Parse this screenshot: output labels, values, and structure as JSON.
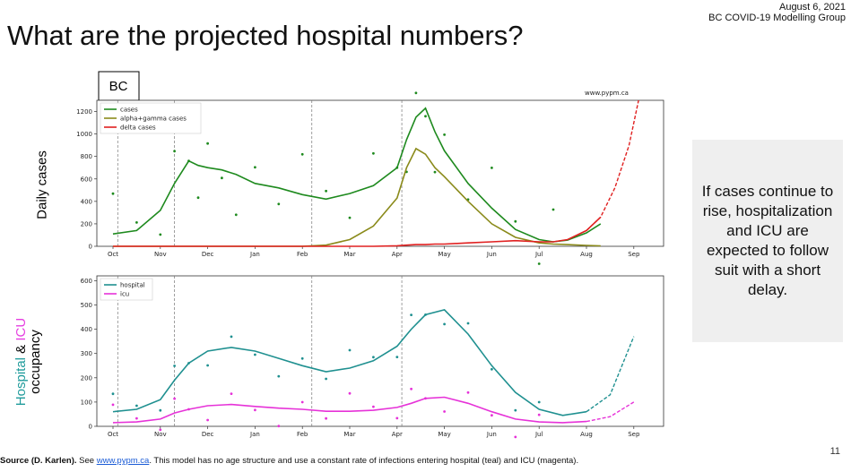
{
  "header": {
    "title": "What are the projected hospital numbers?",
    "date": "August 6, 2021",
    "group": "BC COVID-19 Modelling Group"
  },
  "region_label": "BC",
  "watermark": "www.pypm.ca",
  "callout": "If cases continue to rise, hospitalization and ICU are expected to follow suit with a short delay.",
  "ylabel_top": "Daily cases",
  "ylabel_bottom": {
    "part1": "Hospital",
    "amp": " & ",
    "part2": "ICU",
    "line2": "occupancy"
  },
  "footer": {
    "bold": "Source (D. Karlen).",
    "see": " See ",
    "link": "www.pypm.ca",
    "rest": ". This model has no age structure and use a constant rate of infections entering hospital (teal) and ICU (magenta)."
  },
  "page_number": "11",
  "colors": {
    "cases": "#1e8a1e",
    "alpha": "#8a8a1a",
    "delta": "#e02020",
    "hospital": "#1f9090",
    "icu": "#e632d8"
  },
  "chart_data": [
    {
      "type": "line",
      "xlabels": [
        "Oct",
        "Nov",
        "Dec",
        "Jan",
        "Feb",
        "Mar",
        "Apr",
        "May",
        "Jun",
        "Jul",
        "Aug",
        "Sep"
      ],
      "ylim": [
        0,
        1300
      ],
      "yticks": [
        0,
        200,
        400,
        600,
        800,
        1000,
        1200
      ],
      "legend": [
        "cases",
        "alpha+gamma cases",
        "delta cases"
      ],
      "legend_position": "top-left",
      "x_months": [
        0,
        0.5,
        1,
        1.3,
        1.6,
        1.8,
        2,
        2.3,
        2.6,
        3,
        3.5,
        4,
        4.5,
        5,
        5.5,
        6,
        6.2,
        6.4,
        6.6,
        6.8,
        7,
        7.5,
        8,
        8.5,
        9,
        9.3,
        9.6,
        10,
        10.3
      ],
      "series": [
        {
          "name": "cases",
          "values": [
            110,
            140,
            320,
            560,
            760,
            720,
            700,
            680,
            640,
            560,
            520,
            460,
            420,
            470,
            540,
            700,
            950,
            1150,
            1230,
            1020,
            850,
            560,
            340,
            150,
            60,
            40,
            55,
            120,
            200
          ]
        },
        {
          "name": "alpha+gamma cases",
          "values": [
            0,
            0,
            0,
            0,
            0,
            0,
            0,
            0,
            0,
            0,
            0,
            0,
            10,
            60,
            180,
            430,
            700,
            870,
            820,
            700,
            620,
            400,
            200,
            80,
            30,
            20,
            15,
            8,
            4
          ]
        },
        {
          "name": "delta cases",
          "values": [
            0,
            0,
            0,
            0,
            0,
            0,
            0,
            0,
            0,
            0,
            0,
            0,
            0,
            0,
            0,
            5,
            10,
            15,
            15,
            20,
            20,
            30,
            40,
            50,
            40,
            40,
            60,
            140,
            260
          ]
        }
      ],
      "projection": {
        "name": "delta cases",
        "x_months": [
          10,
          10.3,
          10.6,
          10.9,
          11.1
        ],
        "values": [
          140,
          260,
          520,
          900,
          1300
        ]
      }
    },
    {
      "type": "line",
      "xlabels": [
        "Oct",
        "Nov",
        "Dec",
        "Jan",
        "Feb",
        "Mar",
        "Apr",
        "May",
        "Jun",
        "Jul",
        "Aug",
        "Sep"
      ],
      "ylim": [
        0,
        620
      ],
      "yticks": [
        0,
        100,
        200,
        300,
        400,
        500,
        600
      ],
      "legend": [
        "hospital",
        "icu"
      ],
      "legend_position": "top-left",
      "x_months": [
        0,
        0.5,
        1,
        1.3,
        1.6,
        2,
        2.5,
        3,
        3.5,
        4,
        4.5,
        5,
        5.5,
        6,
        6.3,
        6.6,
        7,
        7.5,
        8,
        8.5,
        9,
        9.5,
        10
      ],
      "series": [
        {
          "name": "hospital",
          "values": [
            60,
            70,
            110,
            190,
            260,
            310,
            325,
            310,
            280,
            250,
            225,
            240,
            270,
            330,
            400,
            460,
            480,
            380,
            250,
            140,
            70,
            45,
            60
          ]
        },
        {
          "name": "icu",
          "values": [
            15,
            18,
            30,
            55,
            70,
            85,
            90,
            82,
            75,
            70,
            62,
            62,
            66,
            78,
            95,
            115,
            120,
            95,
            60,
            30,
            18,
            15,
            20
          ]
        }
      ],
      "projection_hospital": {
        "x_months": [
          10,
          10.5,
          11
        ],
        "values": [
          60,
          130,
          370
        ]
      },
      "projection_icu": {
        "x_months": [
          10,
          10.5,
          11
        ],
        "values": [
          20,
          40,
          100
        ]
      }
    }
  ]
}
